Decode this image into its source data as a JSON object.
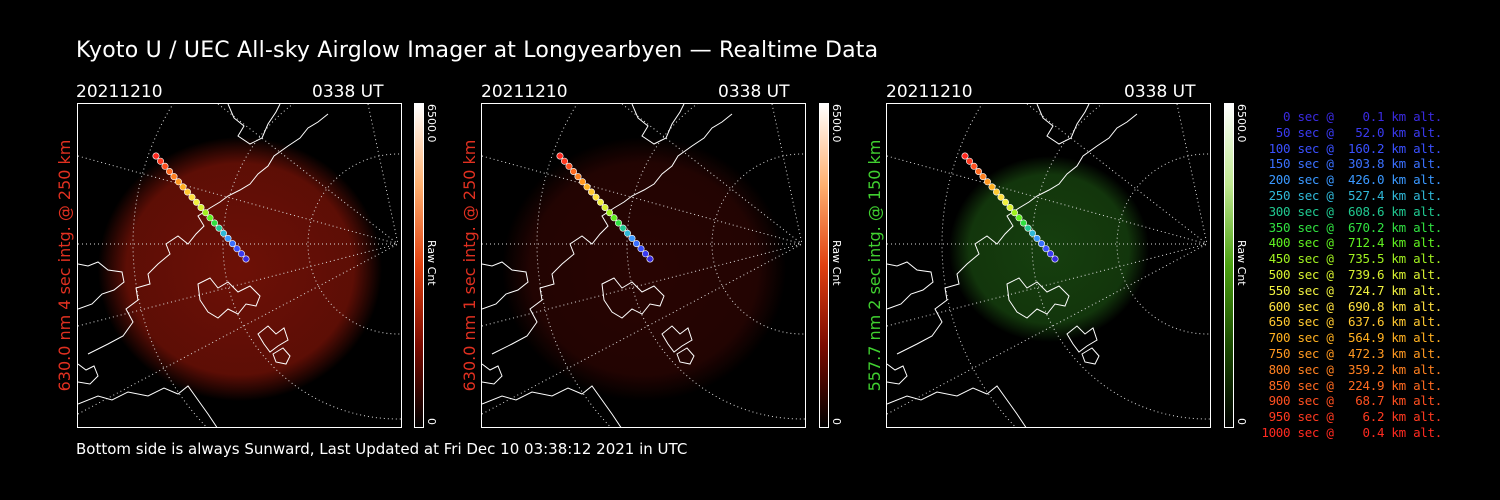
{
  "title": "Kyoto U / UEC All-sky Airglow Imager at Longyearbyen — Realtime Data",
  "footer": "Bottom side is always Sunward, Last Updated at Fri Dec 10 03:38:12 2021 in UTC",
  "panels": [
    {
      "date": "20211210",
      "time": "0338 UT",
      "side_label": "630.0 nm 4 sec intg. @ 250 km",
      "label_color": "#e03020",
      "cbar_max": "6500.0",
      "cbar_min": "0",
      "cbar_unit": "Raw Cnt",
      "glow": "#b01a0a",
      "glow_opacity": 0.62,
      "cbar_colors": [
        "#000000",
        "#7a0a00",
        "#e04010",
        "#ffb070",
        "#ffffff"
      ]
    },
    {
      "date": "20211210",
      "time": "0338 UT",
      "side_label": "630.0 nm 1 sec intg. @ 250 km",
      "label_color": "#e03020",
      "cbar_max": "6500.0",
      "cbar_min": "0",
      "cbar_unit": "Raw Cnt",
      "glow": "#5a0a05",
      "glow_opacity": 0.45,
      "cbar_colors": [
        "#000000",
        "#7a0a00",
        "#e04010",
        "#ffb070",
        "#ffffff"
      ]
    },
    {
      "date": "20211210",
      "time": "0338 UT",
      "side_label": "557.7 nm 2 sec intg. @ 150 km",
      "label_color": "#40d030",
      "cbar_max": "6500.0",
      "cbar_min": "0",
      "cbar_unit": "Raw Cnt",
      "glow": "#1f5a14",
      "glow_opacity": 0.7,
      "cbar_colors": [
        "#000000",
        "#1a4a00",
        "#4aa010",
        "#c0e890",
        "#ffffff"
      ]
    }
  ],
  "legend": [
    {
      "text": "   0 sec @    0.1 km alt.",
      "color": "#3a2ae0"
    },
    {
      "text": "  50 sec @   52.0 km alt.",
      "color": "#3a3af0"
    },
    {
      "text": " 100 sec @  160.2 km alt.",
      "color": "#3a50ff"
    },
    {
      "text": " 150 sec @  303.8 km alt.",
      "color": "#3a70ff"
    },
    {
      "text": " 200 sec @  426.0 km alt.",
      "color": "#3a98ff"
    },
    {
      "text": " 250 sec @  527.4 km alt.",
      "color": "#30b8d8"
    },
    {
      "text": " 300 sec @  608.6 km alt.",
      "color": "#20c890"
    },
    {
      "text": " 350 sec @  670.2 km alt.",
      "color": "#30e040"
    },
    {
      "text": " 400 sec @  712.4 km alt.",
      "color": "#60f020"
    },
    {
      "text": " 450 sec @  735.5 km alt.",
      "color": "#a0f020"
    },
    {
      "text": " 500 sec @  739.6 km alt.",
      "color": "#d8f030"
    },
    {
      "text": " 550 sec @  724.7 km alt.",
      "color": "#f0f040"
    },
    {
      "text": " 600 sec @  690.8 km alt.",
      "color": "#ffe040"
    },
    {
      "text": " 650 sec @  637.6 km alt.",
      "color": "#ffc830"
    },
    {
      "text": " 700 sec @  564.9 km alt.",
      "color": "#ffb020"
    },
    {
      "text": " 750 sec @  472.3 km alt.",
      "color": "#ff9820"
    },
    {
      "text": " 800 sec @  359.2 km alt.",
      "color": "#ff8020"
    },
    {
      "text": " 850 sec @  224.9 km alt.",
      "color": "#ff6a20"
    },
    {
      "text": " 900 sec @   68.7 km alt.",
      "color": "#ff5020"
    },
    {
      "text": " 950 sec @    6.2 km alt.",
      "color": "#ff3a20"
    },
    {
      "text": "1000 sec @    0.4 km alt.",
      "color": "#ff2a20"
    }
  ]
}
